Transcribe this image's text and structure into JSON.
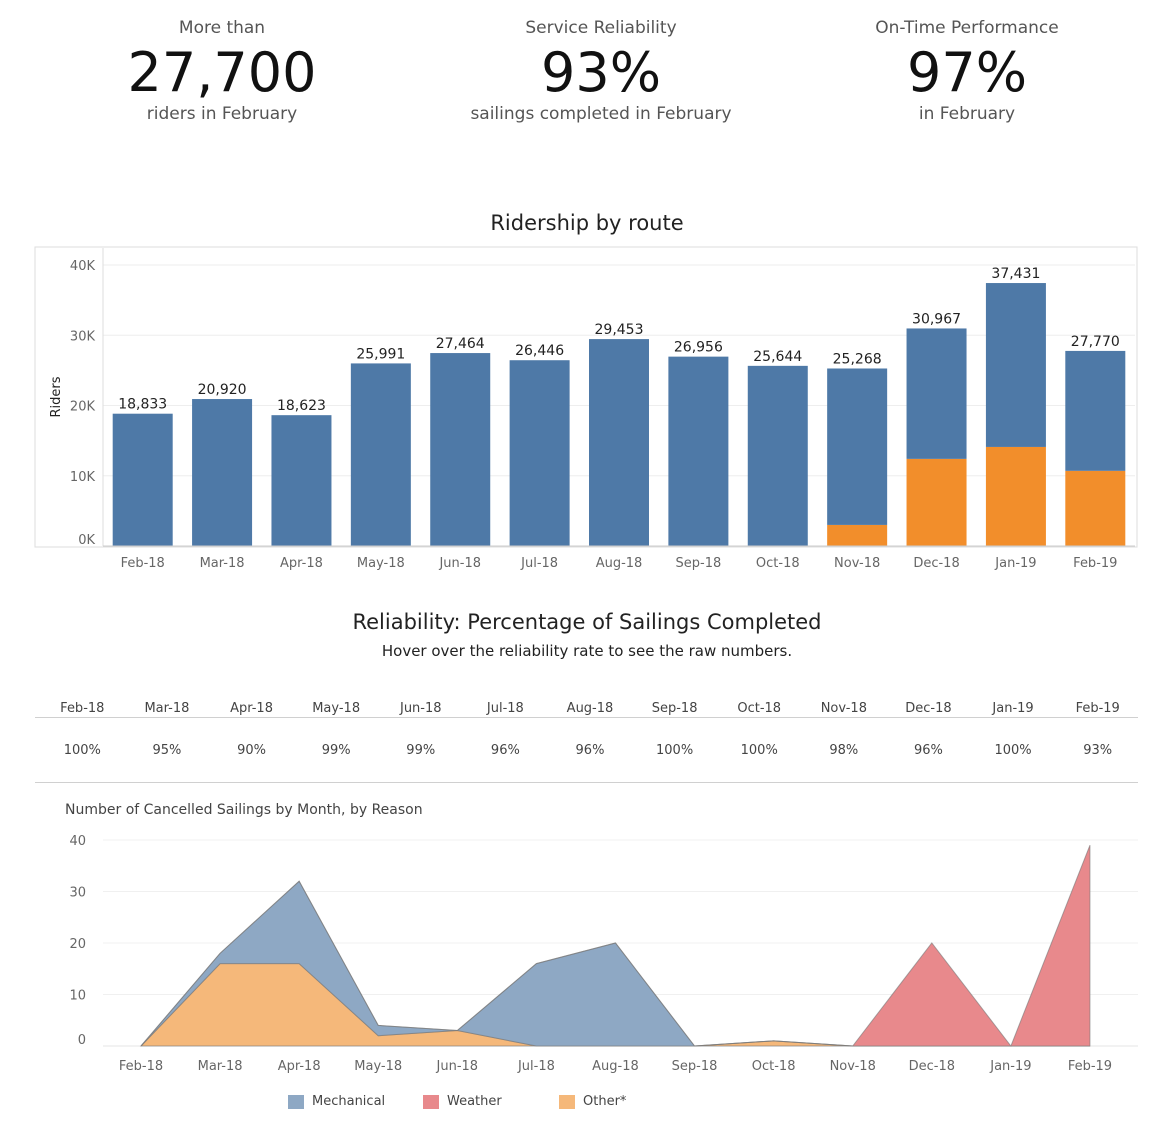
{
  "kpis": [
    {
      "label": "More than",
      "value": "27,700",
      "sub": "riders in February"
    },
    {
      "label": "Service Reliability",
      "value": "93%",
      "sub": "sailings completed in February"
    },
    {
      "label": "On-Time Performance",
      "value": "97%",
      "sub": "in February"
    }
  ],
  "reliability": {
    "title": "Reliability: Percentage of Sailings Completed",
    "subtitle": "Hover over the reliability rate to see the raw numbers.",
    "months": [
      "Feb-18",
      "Mar-18",
      "Apr-18",
      "May-18",
      "Jun-18",
      "Jul-18",
      "Aug-18",
      "Sep-18",
      "Oct-18",
      "Nov-18",
      "Dec-18",
      "Jan-19",
      "Feb-19"
    ],
    "rates": [
      "100%",
      "95%",
      "90%",
      "99%",
      "99%",
      "96%",
      "96%",
      "100%",
      "100%",
      "98%",
      "96%",
      "100%",
      "93%"
    ]
  },
  "chart_data": [
    {
      "type": "bar",
      "stacked": true,
      "title": "Ridership by route",
      "ylabel": "Riders",
      "xlabel": "",
      "ylim": [
        0,
        40000
      ],
      "yticks": [
        "0K",
        "10K",
        "20K",
        "30K",
        "40K"
      ],
      "grid": true,
      "categories": [
        "Feb-18",
        "Mar-18",
        "Apr-18",
        "May-18",
        "Jun-18",
        "Jul-18",
        "Aug-18",
        "Sep-18",
        "Oct-18",
        "Nov-18",
        "Dec-18",
        "Jan-19",
        "Feb-19"
      ],
      "totals": [
        18833,
        20920,
        18623,
        25991,
        27464,
        26446,
        29453,
        26956,
        25644,
        25268,
        30967,
        37431,
        27770
      ],
      "total_labels": [
        "18,833",
        "20,920",
        "18,623",
        "25,991",
        "27,464",
        "26,446",
        "29,453",
        "26,956",
        "25,644",
        "25,268",
        "30,967",
        "37,431",
        "27,770"
      ],
      "series": [
        {
          "color": "#f28e2b",
          "values": [
            0,
            0,
            0,
            0,
            0,
            0,
            0,
            0,
            0,
            3000,
            12400,
            14100,
            10700
          ]
        },
        {
          "color": "#4e79a7",
          "values": [
            18833,
            20920,
            18623,
            25991,
            27464,
            26446,
            29453,
            26956,
            25644,
            22268,
            18567,
            23331,
            17070
          ]
        }
      ]
    },
    {
      "type": "area",
      "stacked": true,
      "title": "Number of Cancelled Sailings by Month, by Reason",
      "ylim": [
        0,
        40
      ],
      "yticks": [
        "0",
        "10",
        "20",
        "30",
        "40"
      ],
      "grid": true,
      "legend_position": "bottom",
      "categories": [
        "Feb-18",
        "Mar-18",
        "Apr-18",
        "May-18",
        "Jun-18",
        "Jul-18",
        "Aug-18",
        "Sep-18",
        "Oct-18",
        "Nov-18",
        "Dec-18",
        "Jan-19",
        "Feb-19"
      ],
      "series": [
        {
          "name": "Other*",
          "color": "#f5b87a",
          "values": [
            0,
            16,
            16,
            2,
            3,
            0,
            0,
            0,
            1,
            0,
            0,
            0,
            0
          ]
        },
        {
          "name": "Mechanical",
          "color": "#8ea8c4",
          "values": [
            0,
            2,
            16,
            2,
            0,
            16,
            20,
            0,
            0,
            0,
            0,
            0,
            0
          ]
        },
        {
          "name": "Weather",
          "color": "#e8898c",
          "values": [
            0,
            0,
            0,
            0,
            0,
            0,
            0,
            0,
            0,
            0,
            20,
            0,
            39
          ]
        }
      ],
      "legend": [
        "Mechanical",
        "Weather",
        "Other*"
      ]
    }
  ]
}
